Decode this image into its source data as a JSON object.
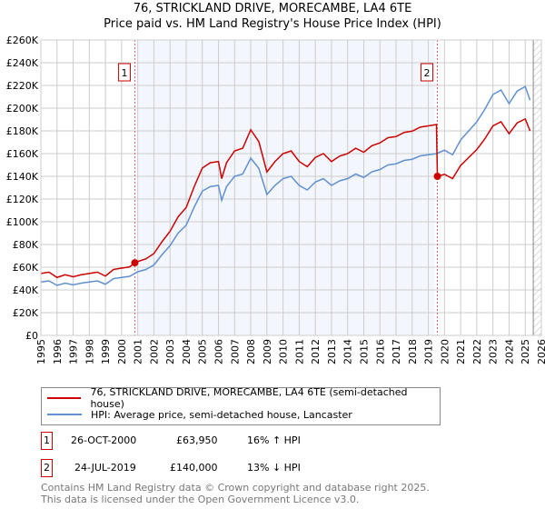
{
  "title_line1": "76, STRICKLAND DRIVE, MORECAMBE, LA4 6TE",
  "title_line2": "Price paid vs. HM Land Registry's House Price Index (HPI)",
  "chart_data": {
    "type": "line",
    "title": "76, STRICKLAND DRIVE, MORECAMBE, LA4 6TE — Price paid vs. HM Land Registry's House Price Index (HPI)",
    "xlim": [
      1995,
      2026
    ],
    "ylim": [
      0,
      260000
    ],
    "x_ticks": [
      "1995",
      "1996",
      "1997",
      "1998",
      "1999",
      "2000",
      "2001",
      "2002",
      "2003",
      "2004",
      "2005",
      "2006",
      "2007",
      "2008",
      "2009",
      "2010",
      "2011",
      "2012",
      "2013",
      "2014",
      "2015",
      "2016",
      "2017",
      "2018",
      "2019",
      "2020",
      "2021",
      "2022",
      "2023",
      "2024",
      "2025",
      "2026"
    ],
    "y_ticks": [
      "£0",
      "£20K",
      "£40K",
      "£60K",
      "£80K",
      "£100K",
      "£120K",
      "£140K",
      "£160K",
      "£180K",
      "£200K",
      "£220K",
      "£240K",
      "£260K"
    ],
    "grid": true,
    "shaded_range": [
      2001.0,
      2019.4
    ],
    "hatched_from": 2025.5,
    "colors": {
      "property": "#cc0000",
      "hpi": "#6090d0"
    },
    "series": [
      {
        "name": "76, STRICKLAND DRIVE, MORECAMBE, LA4 6TE (semi-detached house)",
        "x": [
          1995,
          1995.5,
          1996,
          1996.5,
          1997,
          1997.5,
          1998,
          1998.5,
          1999,
          1999.5,
          2000,
          2000.5,
          2000.82,
          2001,
          2001.5,
          2002,
          2002.5,
          2003,
          2003.5,
          2004,
          2004.5,
          2005,
          2005.5,
          2006,
          2006.2,
          2006.5,
          2007,
          2007.5,
          2008,
          2008.5,
          2009,
          2009.5,
          2010,
          2010.5,
          2011,
          2011.5,
          2012,
          2012.5,
          2013,
          2013.5,
          2014,
          2014.5,
          2015,
          2015.5,
          2016,
          2016.5,
          2017,
          2017.5,
          2018,
          2018.5,
          2019,
          2019.5,
          2019.56,
          2020,
          2020.5,
          2021,
          2021.5,
          2022,
          2022.5,
          2023,
          2023.5,
          2024,
          2024.5,
          2025,
          2025.3
        ],
        "values": [
          54500,
          55700,
          51000,
          53400,
          51600,
          53400,
          54500,
          55700,
          52200,
          58000,
          59200,
          60300,
          63950,
          65000,
          67300,
          72000,
          82400,
          91600,
          104400,
          112500,
          131000,
          147300,
          152000,
          153000,
          138000,
          152000,
          162400,
          164700,
          181000,
          170500,
          143800,
          153000,
          160000,
          162400,
          153000,
          148500,
          156600,
          160000,
          153000,
          157800,
          160000,
          164700,
          161200,
          167000,
          169400,
          174000,
          175000,
          178600,
          179800,
          183300,
          184400,
          185600,
          140000,
          141800,
          138000,
          149600,
          156600,
          163600,
          173000,
          184400,
          188000,
          177500,
          187000,
          190500,
          180000
        ]
      },
      {
        "name": "HPI: Average price, semi-detached house, Lancaster",
        "x": [
          1995,
          1995.5,
          1996,
          1996.5,
          1997,
          1997.5,
          1998,
          1998.5,
          1999,
          1999.5,
          2000,
          2000.5,
          2001,
          2001.5,
          2002,
          2002.5,
          2003,
          2003.5,
          2004,
          2004.5,
          2005,
          2005.5,
          2006,
          2006.2,
          2006.5,
          2007,
          2007.5,
          2008,
          2008.5,
          2009,
          2009.5,
          2010,
          2010.5,
          2011,
          2011.5,
          2012,
          2012.5,
          2013,
          2013.5,
          2014,
          2014.5,
          2015,
          2015.5,
          2016,
          2016.5,
          2017,
          2017.5,
          2018,
          2018.5,
          2019,
          2019.5,
          2020,
          2020.5,
          2021,
          2021.5,
          2022,
          2022.5,
          2023,
          2023.5,
          2024,
          2024.5,
          2025,
          2025.3
        ],
        "values": [
          47000,
          48000,
          44000,
          46000,
          44500,
          46000,
          47000,
          48000,
          45000,
          50000,
          51000,
          52000,
          56000,
          58000,
          62000,
          71000,
          79000,
          90000,
          97000,
          113000,
          127000,
          131000,
          132000,
          119000,
          131000,
          140000,
          142000,
          156000,
          147000,
          124000,
          132000,
          138000,
          140000,
          132000,
          128000,
          135000,
          138000,
          132000,
          136000,
          138000,
          142000,
          139000,
          144000,
          146000,
          150000,
          151000,
          154000,
          155000,
          158000,
          159000,
          160000,
          163000,
          159000,
          172000,
          180000,
          188000,
          199000,
          212000,
          216000,
          204000,
          215000,
          219000,
          207000
        ]
      }
    ],
    "sales": [
      {
        "label": "1",
        "x": 2000.82,
        "value": 63950
      },
      {
        "label": "2",
        "x": 2019.56,
        "value": 140000
      }
    ]
  },
  "legend": {
    "property": "76, STRICKLAND DRIVE, MORECAMBE, LA4 6TE (semi-detached house)",
    "hpi": "HPI: Average price, semi-detached house, Lancaster"
  },
  "transactions": [
    {
      "num": "1",
      "date": "26-OCT-2000",
      "price": "£63,950",
      "hpi": "16% ↑ HPI"
    },
    {
      "num": "2",
      "date": "24-JUL-2019",
      "price": "£140,000",
      "hpi": "13% ↓ HPI"
    }
  ],
  "footer_line1": "Contains HM Land Registry data © Crown copyright and database right 2025.",
  "footer_line2": "This data is licensed under the Open Government Licence v3.0."
}
